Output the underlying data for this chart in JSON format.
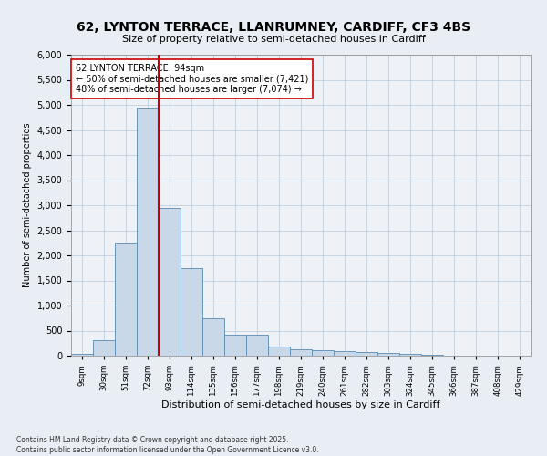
{
  "title": "62, LYNTON TERRACE, LLANRUMNEY, CARDIFF, CF3 4BS",
  "subtitle": "Size of property relative to semi-detached houses in Cardiff",
  "xlabel": "Distribution of semi-detached houses by size in Cardiff",
  "ylabel": "Number of semi-detached properties",
  "bins": [
    "9sqm",
    "30sqm",
    "51sqm",
    "72sqm",
    "93sqm",
    "114sqm",
    "135sqm",
    "156sqm",
    "177sqm",
    "198sqm",
    "219sqm",
    "240sqm",
    "261sqm",
    "282sqm",
    "303sqm",
    "324sqm",
    "345sqm",
    "366sqm",
    "387sqm",
    "408sqm",
    "429sqm"
  ],
  "bar_heights": [
    30,
    310,
    2250,
    4950,
    2950,
    1750,
    750,
    420,
    420,
    185,
    130,
    110,
    90,
    70,
    50,
    35,
    10,
    5,
    0,
    0,
    0
  ],
  "property_bin_index": 4,
  "bar_color": "#c8d8e8",
  "bar_edge_color": "#5a8ab0",
  "vline_color": "#cc0000",
  "annotation_text": "62 LYNTON TERRACE: 94sqm\n← 50% of semi-detached houses are smaller (7,421)\n48% of semi-detached houses are larger (7,074) →",
  "annotation_box_color": "#ffffff",
  "annotation_box_edge": "#cc0000",
  "ylim": [
    0,
    6000
  ],
  "yticks": [
    0,
    500,
    1000,
    1500,
    2000,
    2500,
    3000,
    3500,
    4000,
    4500,
    5000,
    5500,
    6000
  ],
  "footer": "Contains HM Land Registry data © Crown copyright and database right 2025.\nContains public sector information licensed under the Open Government Licence v3.0.",
  "bg_color": "#e8eef4",
  "plot_bg_color": "#eef2f7",
  "title_fontsize": 10,
  "subtitle_fontsize": 8,
  "ylabel_fontsize": 7,
  "xlabel_fontsize": 8
}
